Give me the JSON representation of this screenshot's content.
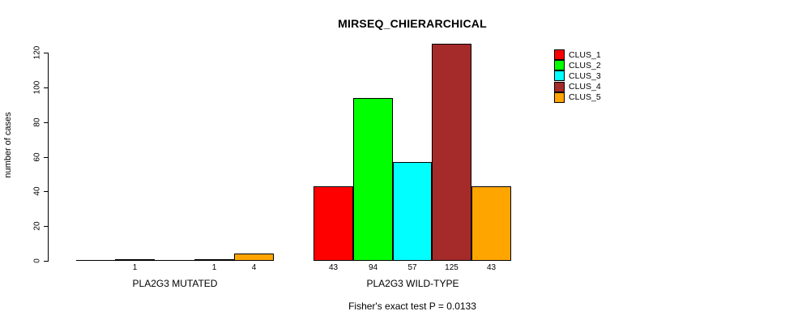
{
  "title": "MIRSEQ_CHIERARCHICAL",
  "subtitle": "Fisher's exact test P = 0.0133",
  "y_axis": {
    "label": "number of cases",
    "ticks": [
      0,
      20,
      40,
      60,
      80,
      100,
      120
    ]
  },
  "legend": {
    "position": "right",
    "items": [
      {
        "label": "CLUS_1",
        "color": "#FF0000"
      },
      {
        "label": "CLUS_2",
        "color": "#00FF00"
      },
      {
        "label": "CLUS_3",
        "color": "#00FFFF"
      },
      {
        "label": "CLUS_4",
        "color": "#A52A2A"
      },
      {
        "label": "CLUS_5",
        "color": "#FFA500"
      }
    ]
  },
  "chart_data": {
    "type": "bar",
    "title": "MIRSEQ_CHIERARCHICAL",
    "subtitle": "Fisher's exact test P = 0.0133",
    "categories": [
      "PLA2G3 MUTATED",
      "PLA2G3 WILD-TYPE"
    ],
    "series": [
      {
        "name": "CLUS_1",
        "color": "#FF0000",
        "values": [
          0,
          43
        ]
      },
      {
        "name": "CLUS_2",
        "color": "#00FF00",
        "values": [
          1,
          94
        ]
      },
      {
        "name": "CLUS_3",
        "color": "#00FFFF",
        "values": [
          0,
          57
        ]
      },
      {
        "name": "CLUS_4",
        "color": "#A52A2A",
        "values": [
          1,
          125
        ]
      },
      {
        "name": "CLUS_5",
        "color": "#FFA500",
        "values": [
          4,
          43
        ]
      }
    ],
    "xlabel": "",
    "ylabel": "number of cases",
    "ylim": [
      0,
      125
    ],
    "grid": false,
    "legend_position": "right",
    "bar_value_labels": "shown below axis for non-zero bars"
  }
}
